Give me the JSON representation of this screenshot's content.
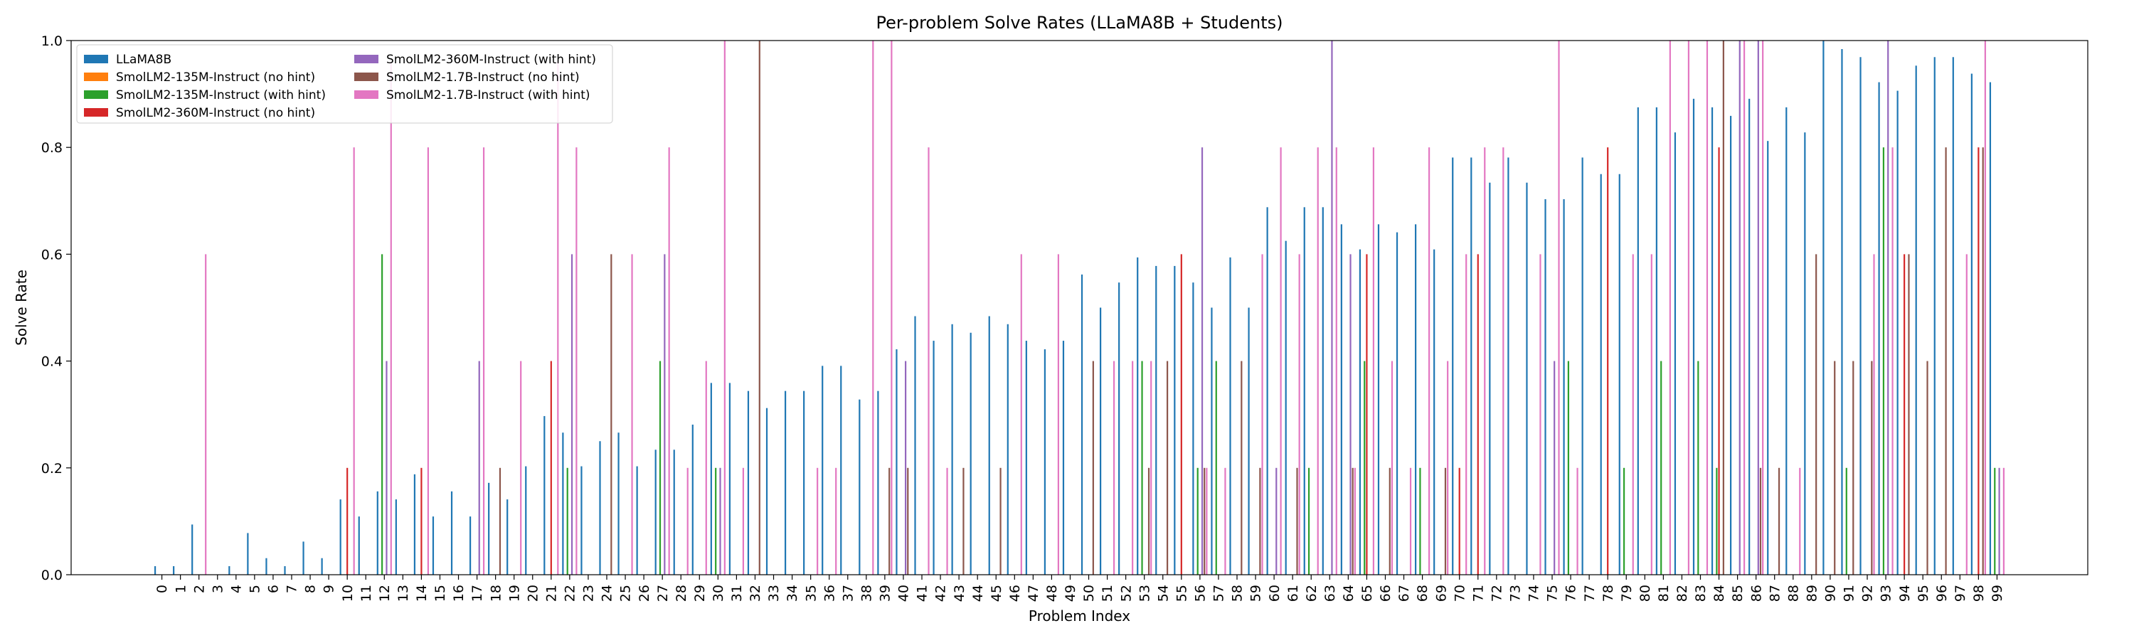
{
  "chart_data": {
    "type": "bar",
    "title": "Per-problem Solve Rates (LLaMA8B + Students)",
    "xlabel": "Problem Index",
    "ylabel": "Solve Rate",
    "ylim": [
      0,
      1.0
    ],
    "yticks": [
      "0.0",
      "0.2",
      "0.4",
      "0.6",
      "0.8",
      "1.0"
    ],
    "grid": false,
    "legend_position": "top-left",
    "categories": [
      "0",
      "1",
      "2",
      "3",
      "4",
      "5",
      "6",
      "7",
      "8",
      "9",
      "10",
      "11",
      "12",
      "13",
      "14",
      "15",
      "16",
      "17",
      "18",
      "19",
      "20",
      "21",
      "22",
      "23",
      "24",
      "25",
      "26",
      "27",
      "28",
      "29",
      "30",
      "31",
      "32",
      "33",
      "34",
      "35",
      "36",
      "37",
      "38",
      "39",
      "40",
      "41",
      "42",
      "43",
      "44",
      "45",
      "46",
      "47",
      "48",
      "49",
      "50",
      "51",
      "52",
      "53",
      "54",
      "55",
      "56",
      "57",
      "58",
      "59",
      "60",
      "61",
      "62",
      "63",
      "64",
      "65",
      "66",
      "67",
      "68",
      "69",
      "70",
      "71",
      "72",
      "73",
      "74",
      "75",
      "76",
      "77",
      "78",
      "79",
      "80",
      "81",
      "82",
      "83",
      "84",
      "85",
      "86",
      "87",
      "88",
      "89",
      "90",
      "91",
      "92",
      "93",
      "94",
      "95",
      "96",
      "97",
      "98",
      "99"
    ],
    "series": [
      {
        "name": "LLaMA8B",
        "color": "#1f77b4",
        "values": [
          0.016,
          0.016,
          0.094,
          0,
          0.016,
          0.078,
          0.031,
          0.016,
          0.062,
          0.031,
          0.141,
          0.109,
          0.156,
          0.141,
          0.188,
          0.109,
          0.156,
          0.109,
          0.172,
          0.141,
          0.203,
          0.297,
          0.266,
          0.203,
          0.25,
          0.266,
          0.203,
          0.234,
          0.234,
          0.281,
          0.359,
          0.359,
          0.344,
          0.312,
          0.344,
          0.344,
          0.391,
          0.391,
          0.328,
          0.344,
          0.422,
          0.484,
          0.438,
          0.469,
          0.453,
          0.484,
          0.469,
          0.438,
          0.422,
          0.438,
          0.562,
          0.5,
          0.547,
          0.594,
          0.578,
          0.578,
          0.547,
          0.5,
          0.594,
          0.5,
          0.688,
          0.625,
          0.688,
          0.688,
          0.656,
          0.609,
          0.656,
          0.641,
          0.656,
          0.609,
          0.781,
          0.781,
          0.734,
          0.781,
          0.734,
          0.703,
          0.703,
          0.781,
          0.75,
          0.75,
          0.875,
          0.875,
          0.828,
          0.891,
          0.875,
          0.859,
          0.891,
          0.812,
          0.875,
          0.828,
          1.0,
          0.984,
          0.969,
          0.922,
          0.906,
          0.953,
          0.969,
          0.969,
          0.938,
          0.922
        ]
      },
      {
        "name": "SmolLM2-135M-Instruct (no hint)",
        "color": "#ff7f0e",
        "values": [
          0,
          0,
          0,
          0,
          0,
          0,
          0,
          0,
          0,
          0,
          0,
          0,
          0,
          0,
          0,
          0,
          0,
          0,
          0,
          0,
          0,
          0,
          0,
          0,
          0,
          0,
          0,
          0,
          0,
          0,
          0,
          0,
          0,
          0,
          0,
          0,
          0,
          0,
          0,
          0,
          0,
          0,
          0,
          0,
          0,
          0,
          0,
          0,
          0,
          0,
          0,
          0,
          0,
          0,
          0,
          0,
          0,
          0,
          0,
          0,
          0,
          0,
          0,
          0,
          0,
          0,
          0,
          0,
          0,
          0,
          0,
          0,
          0,
          0,
          0,
          0,
          0,
          0,
          0,
          0,
          0,
          0,
          0,
          0,
          0,
          0,
          0,
          0,
          0,
          0,
          0,
          0,
          0,
          0,
          0,
          0,
          0,
          0,
          0,
          0
        ]
      },
      {
        "name": "SmolLM2-135M-Instruct (with hint)",
        "color": "#2ca02c",
        "values": [
          0,
          0,
          0,
          0,
          0,
          0,
          0,
          0,
          0,
          0,
          0,
          0,
          0.6,
          0,
          0,
          0,
          0,
          0,
          0,
          0,
          0,
          0,
          0.2,
          0,
          0,
          0,
          0,
          0.4,
          0,
          0,
          0.2,
          0,
          0,
          0,
          0,
          0,
          0,
          0,
          0,
          0,
          0,
          0,
          0,
          0,
          0,
          0,
          0,
          0,
          0,
          0,
          0,
          0,
          0,
          0.4,
          0,
          0,
          0.2,
          0.4,
          0,
          0,
          0,
          0,
          0.2,
          0,
          0,
          0.4,
          0,
          0,
          0.2,
          0,
          0,
          0,
          0,
          0,
          0,
          0,
          0.4,
          0,
          0,
          0.2,
          0,
          0.4,
          0,
          0.4,
          0.2,
          0,
          0,
          0,
          0,
          0,
          0,
          0.2,
          0,
          0.8,
          0,
          0,
          0,
          0,
          0,
          0.2
        ]
      },
      {
        "name": "SmolLM2-360M-Instruct (no hint)",
        "color": "#d62728",
        "values": [
          0,
          0,
          0,
          0,
          0,
          0,
          0,
          0,
          0,
          0,
          0.2,
          0,
          0,
          0,
          0.2,
          0,
          0,
          0,
          0,
          0,
          0,
          0.4,
          0,
          0,
          0,
          0,
          0,
          0,
          0,
          0,
          0,
          0,
          0,
          0,
          0,
          0,
          0,
          0,
          0,
          0,
          0,
          0,
          0,
          0,
          0,
          0,
          0,
          0,
          0,
          0,
          0,
          0,
          0,
          0,
          0,
          0.6,
          0,
          0,
          0,
          0,
          0,
          0,
          0,
          0,
          0,
          0.6,
          0,
          0,
          0,
          0,
          0.2,
          0.6,
          0,
          0,
          0,
          0,
          0,
          0,
          0.8,
          0,
          0,
          0,
          0,
          0,
          0.8,
          0,
          0,
          0,
          0,
          0,
          0,
          0,
          0,
          0,
          0.6,
          0,
          0,
          0,
          0.8,
          0
        ]
      },
      {
        "name": "SmolLM2-360M-Instruct (with hint)",
        "color": "#9467bd",
        "values": [
          0,
          0,
          0,
          0,
          0,
          0,
          0,
          0,
          0,
          0,
          0,
          0,
          0.4,
          0,
          0,
          0,
          0,
          0.4,
          0,
          0,
          0,
          0,
          0.6,
          0,
          0,
          0,
          0,
          0.6,
          0,
          0,
          0.2,
          0,
          0,
          0,
          0,
          0,
          0,
          0,
          0,
          0,
          0.4,
          0,
          0,
          0,
          0,
          0,
          0,
          0,
          0,
          0,
          0,
          0,
          0,
          0,
          0,
          0,
          0.8,
          0,
          0,
          0,
          0.2,
          0,
          0,
          1.0,
          0.6,
          0,
          0,
          0,
          0,
          0,
          0,
          0,
          0,
          0,
          0,
          0.4,
          0,
          0,
          0,
          0,
          0,
          0,
          0,
          0,
          0,
          1.0,
          1.0,
          0,
          0,
          0,
          0,
          0,
          0,
          1.0,
          0,
          0,
          0,
          0,
          0,
          0.2
        ]
      },
      {
        "name": "SmolLM2-1.7B-Instruct (no hint)",
        "color": "#8c564b",
        "values": [
          0,
          0,
          0,
          0,
          0,
          0,
          0,
          0,
          0,
          0,
          0,
          0,
          0,
          0,
          0,
          0,
          0,
          0,
          0.2,
          0,
          0,
          0,
          0,
          0,
          0.6,
          0,
          0,
          0,
          0,
          0,
          0,
          0,
          1.0,
          0,
          0,
          0,
          0,
          0,
          0,
          0.2,
          0.2,
          0,
          0,
          0.2,
          0,
          0.2,
          0,
          0,
          0,
          0,
          0.4,
          0,
          0,
          0.2,
          0.4,
          0,
          0.2,
          0,
          0.4,
          0.2,
          0,
          0.2,
          0,
          0,
          0.2,
          0,
          0.2,
          0,
          0,
          0.2,
          0,
          0,
          0,
          0,
          0,
          0,
          0,
          0,
          0,
          0,
          0,
          0,
          0,
          0,
          1.0,
          0,
          0.2,
          0.2,
          0,
          0.6,
          0.4,
          0.4,
          0.4,
          0,
          0.6,
          0.4,
          0.8,
          0,
          0.8,
          0
        ]
      },
      {
        "name": "SmolLM2-1.7B-Instruct (with hint)",
        "color": "#e377c2",
        "values": [
          0,
          0,
          0.6,
          0,
          0,
          0,
          0,
          0,
          0,
          0,
          0.8,
          0,
          0.96,
          0,
          0.8,
          0,
          0,
          0.8,
          0,
          0.4,
          0,
          0.96,
          0.8,
          0,
          0,
          0.6,
          0,
          0.8,
          0.2,
          0.4,
          1.0,
          0.2,
          0,
          0,
          0,
          0.2,
          0.2,
          0,
          1.0,
          1.0,
          0,
          0.8,
          0.2,
          0,
          0,
          0,
          0.6,
          0,
          0.6,
          0,
          0,
          0.4,
          0.4,
          0.4,
          0,
          0,
          0.2,
          0.2,
          0,
          0.6,
          0.8,
          0.6,
          0.8,
          0.8,
          0.2,
          0.8,
          0.4,
          0.2,
          0.8,
          0.4,
          0.6,
          0.8,
          0.8,
          0,
          0.6,
          1.0,
          0.2,
          0,
          0,
          0.6,
          0.6,
          1.0,
          1.0,
          1.0,
          0,
          1.0,
          1.0,
          0,
          0.2,
          0,
          0,
          0,
          0.6,
          0.8,
          0,
          0,
          0,
          0.6,
          1.0,
          0.2
        ]
      }
    ]
  }
}
